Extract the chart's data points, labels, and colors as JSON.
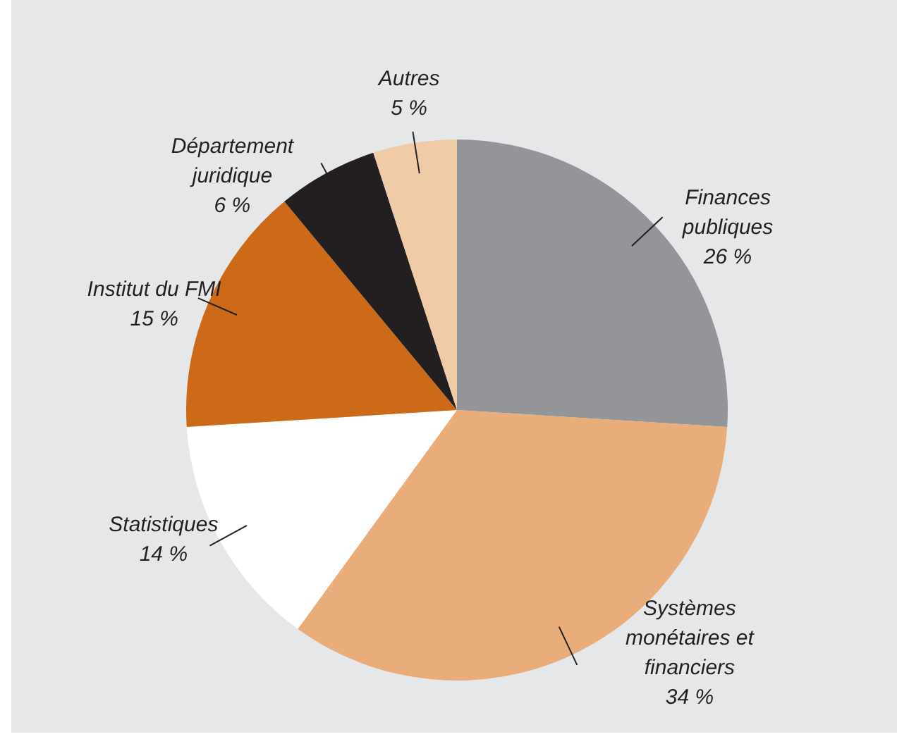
{
  "chart_data": {
    "type": "pie",
    "categories": [
      "Finances publiques",
      "Systèmes monétaires et financiers",
      "Statistiques",
      "Institut du FMI",
      "Département juridique",
      "Autres"
    ],
    "values": [
      26,
      34,
      14,
      15,
      6,
      5
    ],
    "value_labels": [
      "26 %",
      "34 %",
      "14 %",
      "15 %",
      "6 %",
      "5 %"
    ],
    "colors": [
      "#939598",
      "#e8ad7a",
      "#ffffff",
      "#cd6a1a",
      "#231f20",
      "#f0cba8"
    ]
  }
}
